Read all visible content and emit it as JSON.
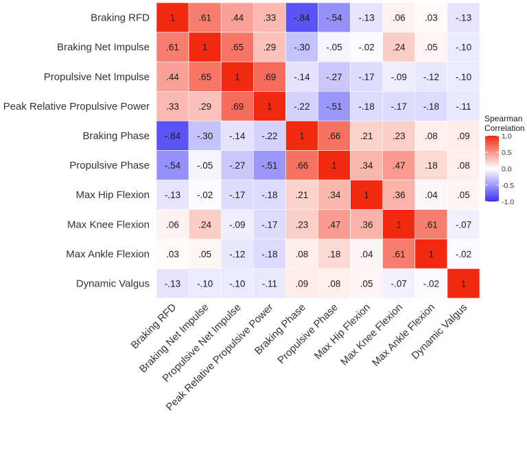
{
  "chart_data": {
    "type": "heatmap",
    "variables": [
      "Braking RFD",
      "Braking Net Impulse",
      "Propulsive Net Impulse",
      "Peak Relative Propulsive Power",
      "Braking Phase",
      "Propulsive Phase",
      "Max Hip Flexion",
      "Max Knee Flexion",
      "Max Ankle Flexion",
      "Dynamic Valgus"
    ],
    "values": [
      [
        1,
        0.61,
        0.44,
        0.33,
        -0.84,
        -0.54,
        -0.13,
        0.06,
        0.03,
        -0.13
      ],
      [
        0.61,
        1,
        0.65,
        0.29,
        -0.3,
        -0.05,
        -0.02,
        0.24,
        0.05,
        -0.1
      ],
      [
        0.44,
        0.65,
        1,
        0.69,
        -0.14,
        -0.27,
        -0.17,
        -0.09,
        -0.12,
        -0.1
      ],
      [
        0.33,
        0.29,
        0.69,
        1,
        -0.22,
        -0.51,
        -0.18,
        -0.17,
        -0.18,
        -0.11
      ],
      [
        -0.84,
        -0.3,
        -0.14,
        -0.22,
        1,
        0.66,
        0.21,
        0.23,
        0.08,
        0.09
      ],
      [
        -0.54,
        -0.05,
        -0.27,
        -0.51,
        0.66,
        1,
        0.34,
        0.47,
        0.18,
        0.08
      ],
      [
        -0.13,
        -0.02,
        -0.17,
        -0.18,
        0.21,
        0.34,
        1,
        0.36,
        0.04,
        0.05
      ],
      [
        0.06,
        0.24,
        -0.09,
        -0.17,
        0.23,
        0.47,
        0.36,
        1,
        0.61,
        -0.07
      ],
      [
        0.03,
        0.05,
        -0.12,
        -0.18,
        0.08,
        0.18,
        0.04,
        0.61,
        1,
        -0.02
      ],
      [
        -0.13,
        -0.1,
        -0.1,
        -0.11,
        0.09,
        0.08,
        0.05,
        -0.07,
        -0.02,
        1
      ]
    ],
    "labels": [
      [
        "1",
        ".61",
        ".44",
        ".33",
        "-.84",
        "-.54",
        "-.13",
        ".06",
        ".03",
        "-.13"
      ],
      [
        ".61",
        "1",
        ".65",
        ".29",
        "-.30",
        "-.05",
        "-.02",
        ".24",
        ".05",
        "-.10"
      ],
      [
        ".44",
        ".65",
        "1",
        ".69",
        "-.14",
        "-.27",
        "-.17",
        "-.09",
        "-.12",
        "-.10"
      ],
      [
        ".33",
        ".29",
        ".69",
        "1",
        "-.22",
        "-.51",
        "-.18",
        "-.17",
        "-.18",
        "-.11"
      ],
      [
        "-.84",
        "-.30",
        "-.14",
        "-.22",
        "1",
        ".66",
        ".21",
        ".23",
        ".08",
        ".09"
      ],
      [
        "-.54",
        "-.05",
        "-.27",
        "-.51",
        ".66",
        "1",
        ".34",
        ".47",
        ".18",
        ".08"
      ],
      [
        "-.13",
        "-.02",
        "-.17",
        "-.18",
        ".21",
        ".34",
        "1",
        ".36",
        ".04",
        ".05"
      ],
      [
        ".06",
        ".24",
        "-.09",
        "-.17",
        ".23",
        ".47",
        ".36",
        "1",
        ".61",
        "-.07"
      ],
      [
        ".03",
        ".05",
        "-.12",
        "-.18",
        ".08",
        ".18",
        ".04",
        ".61",
        "1",
        "-.02"
      ],
      [
        "-.13",
        "-.10",
        "-.10",
        "-.11",
        ".09",
        ".08",
        ".05",
        "-.07",
        "-.02",
        "1"
      ]
    ],
    "legend": {
      "title_lines": [
        "Spearman",
        "Correlation"
      ],
      "range": [
        -1,
        1
      ],
      "ticks": [
        1.0,
        0.5,
        0.0,
        -0.5,
        -1.0
      ],
      "tick_labels": [
        "1.0",
        "0.5",
        "0.0",
        "-0.5",
        "-1.0"
      ],
      "placement": "right"
    },
    "colors": {
      "low": "#3b33f2",
      "mid": "#ffffff",
      "high": "#f22a12"
    }
  }
}
